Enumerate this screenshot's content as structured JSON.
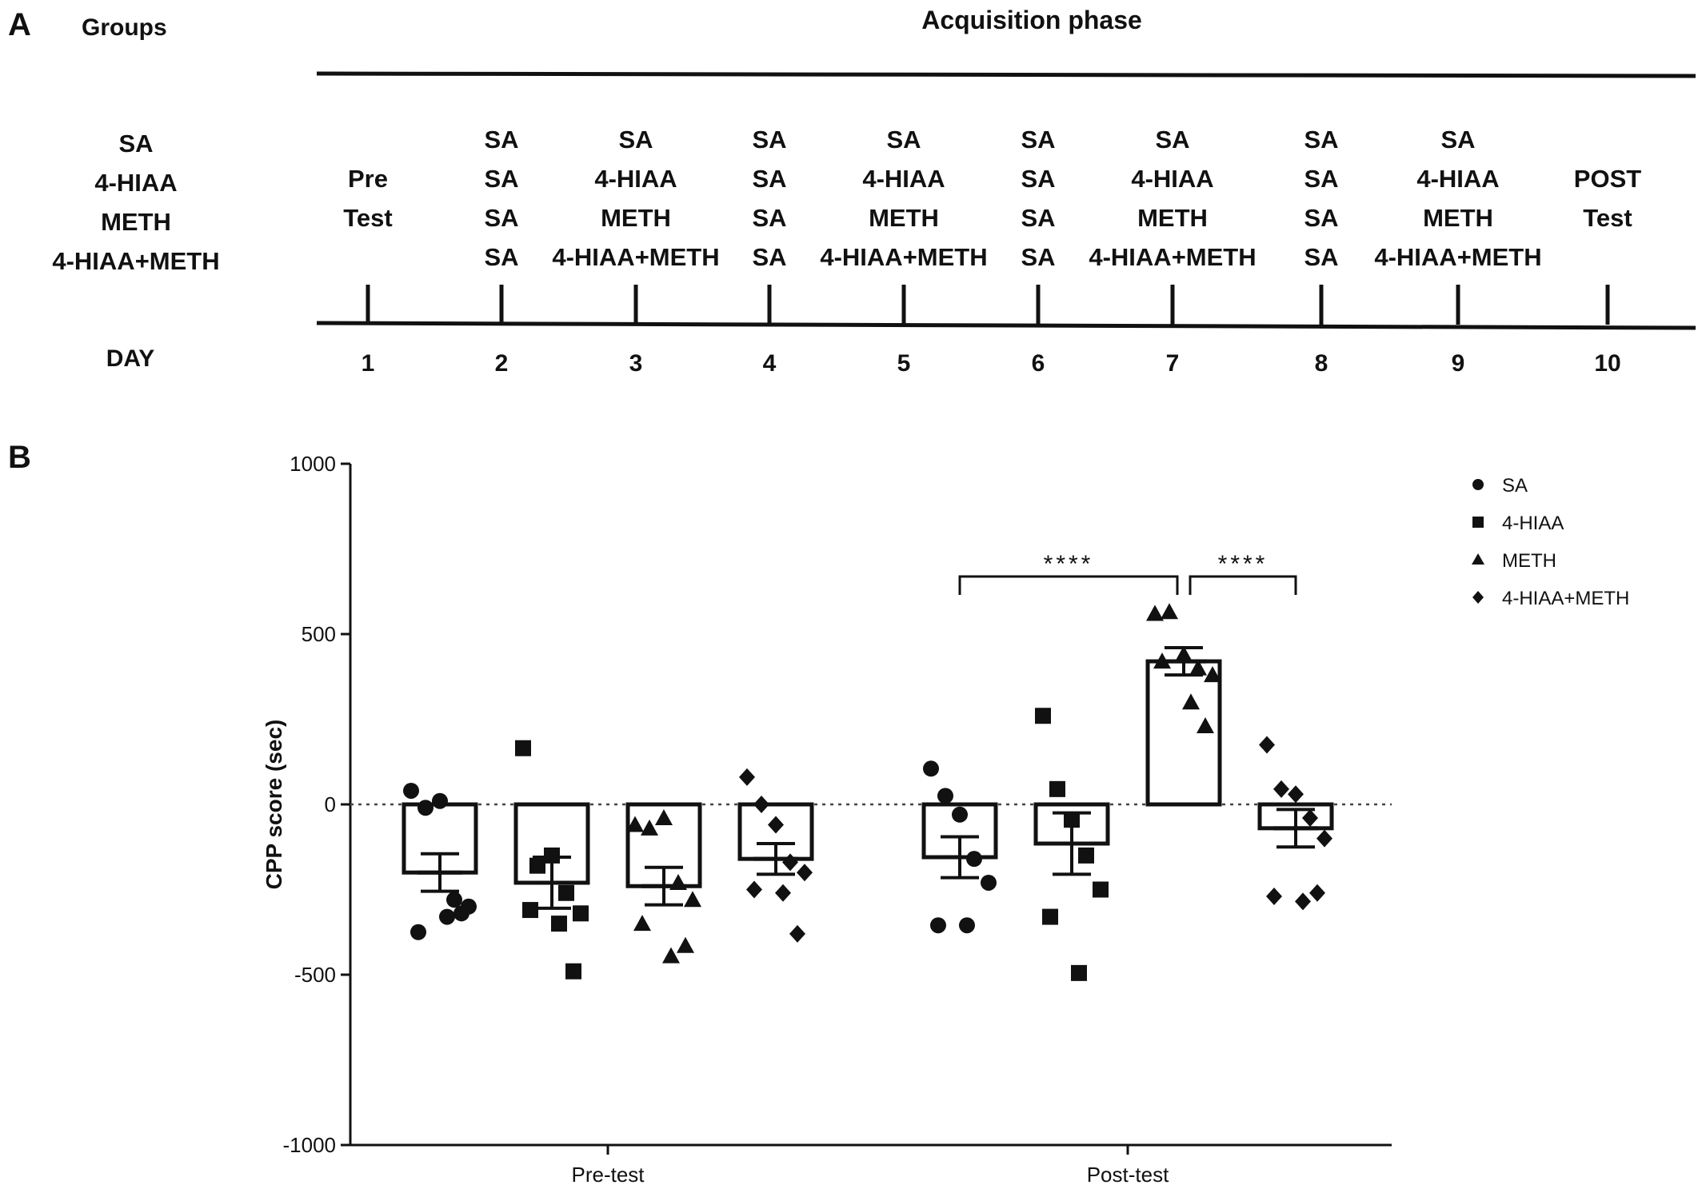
{
  "panel_a": {
    "label": "A",
    "groups_heading": "Groups",
    "phase_title": "Acquisition phase",
    "groups": [
      "SA",
      "4-HIAA",
      "METH",
      "4-HIAA+METH"
    ],
    "day_label": "DAY",
    "days": [
      {
        "day": "1",
        "text": [
          "Pre",
          "Test"
        ]
      },
      {
        "day": "2",
        "text": [
          "SA",
          "SA",
          "SA",
          "SA"
        ]
      },
      {
        "day": "3",
        "text": [
          "SA",
          "4-HIAA",
          "METH",
          "4-HIAA+METH"
        ]
      },
      {
        "day": "4",
        "text": [
          "SA",
          "SA",
          "SA",
          "SA"
        ]
      },
      {
        "day": "5",
        "text": [
          "SA",
          "4-HIAA",
          "METH",
          "4-HIAA+METH"
        ]
      },
      {
        "day": "6",
        "text": [
          "SA",
          "SA",
          "SA",
          "SA"
        ]
      },
      {
        "day": "7",
        "text": [
          "SA",
          "4-HIAA",
          "METH",
          "4-HIAA+METH"
        ]
      },
      {
        "day": "8",
        "text": [
          "SA",
          "SA",
          "SA",
          "SA"
        ]
      },
      {
        "day": "9",
        "text": [
          "SA",
          "4-HIAA",
          "METH",
          "4-HIAA+METH"
        ]
      },
      {
        "day": "10",
        "text": [
          "POST",
          "Test"
        ]
      }
    ]
  },
  "chart_data": {
    "panel_label": "B",
    "type": "bar",
    "ylabel": "CPP score (sec)",
    "xlabel": "",
    "ylim": [
      -1000,
      1000
    ],
    "yticks": [
      1000,
      500,
      0,
      -500,
      -1000
    ],
    "categories": [
      "Pre-test",
      "Post-test"
    ],
    "reference_line": 0,
    "series": [
      {
        "name": "SA",
        "marker": "circle",
        "means": [
          -200,
          -155
        ],
        "sem": [
          55,
          60
        ],
        "points": [
          [
            40,
            -10,
            10,
            -280,
            -300,
            -375,
            -330,
            -320
          ],
          [
            105,
            25,
            -30,
            -160,
            -230,
            -355,
            -355
          ]
        ]
      },
      {
        "name": "4-HIAA",
        "marker": "square",
        "means": [
          -230,
          -115
        ],
        "sem": [
          75,
          90
        ],
        "points": [
          [
            165,
            -180,
            -150,
            -260,
            -320,
            -310,
            -350,
            -490
          ],
          [
            260,
            45,
            -45,
            -150,
            -250,
            -330,
            -495
          ]
        ]
      },
      {
        "name": "METH",
        "marker": "triangle",
        "means": [
          -240,
          420
        ],
        "sem": [
          55,
          40
        ],
        "points": [
          [
            -60,
            -70,
            -40,
            -230,
            -280,
            -350,
            -445,
            -415
          ],
          [
            560,
            565,
            440,
            400,
            380,
            420,
            300,
            230
          ]
        ]
      },
      {
        "name": "4-HIAA+METH",
        "marker": "diamond",
        "means": [
          -160,
          -70
        ],
        "sem": [
          45,
          55
        ],
        "points": [
          [
            80,
            0,
            -60,
            -170,
            -200,
            -250,
            -260,
            -380
          ],
          [
            175,
            45,
            30,
            -40,
            -100,
            -270,
            -285,
            -260
          ]
        ]
      }
    ],
    "significance": [
      {
        "from_group": "Post-test",
        "from_series": "SA",
        "to_series": "METH",
        "label": "****"
      },
      {
        "from_group": "Post-test",
        "from_series": "METH",
        "to_series": "4-HIAA+METH",
        "label": "****"
      }
    ],
    "legend_position": "top-right"
  }
}
